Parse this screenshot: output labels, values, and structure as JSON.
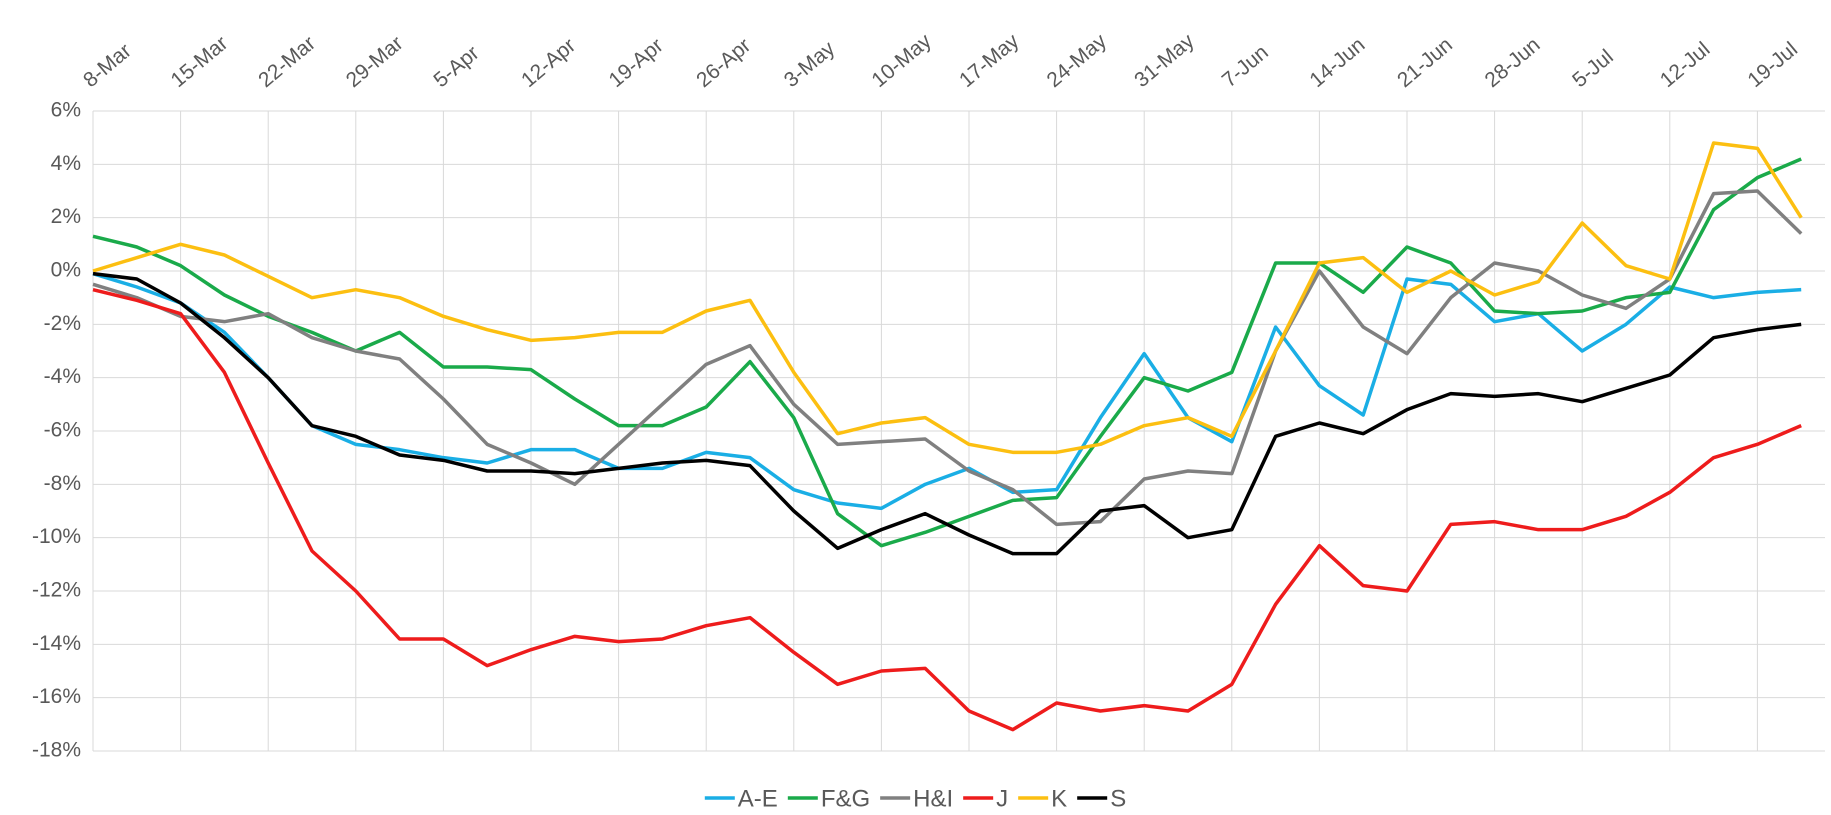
{
  "chart_data": {
    "type": "line",
    "categories": [
      "8-Mar",
      null,
      "15-Mar",
      null,
      "22-Mar",
      null,
      "29-Mar",
      null,
      "5-Apr",
      null,
      "12-Apr",
      null,
      "19-Apr",
      null,
      "26-Apr",
      null,
      "3-May",
      null,
      "10-May",
      null,
      "17-May",
      null,
      "24-May",
      null,
      "31-May",
      null,
      "7-Jun",
      null,
      "14-Jun",
      null,
      "21-Jun",
      null,
      "28-Jun",
      null,
      "5-Jul",
      null,
      "12-Jul",
      null,
      "19-Jul",
      null
    ],
    "series": [
      {
        "name": "A-E",
        "color": "#1aaee5",
        "values": [
          -0.1,
          -0.6,
          -1.2,
          -2.3,
          -4.0,
          -5.8,
          -6.5,
          -6.7,
          -7.0,
          -7.2,
          -6.7,
          -6.7,
          -7.4,
          -7.4,
          -6.8,
          -7.0,
          -8.2,
          -8.7,
          -8.9,
          -8.0,
          -7.4,
          -8.3,
          -8.2,
          -5.5,
          -3.1,
          -5.5,
          -6.4,
          -2.1,
          -4.3,
          -5.4,
          -0.3,
          -0.5,
          -1.9,
          -1.6,
          -3.0,
          -2.0,
          -0.6,
          -1.0,
          -0.8,
          -0.7
        ]
      },
      {
        "name": "F&G",
        "color": "#1aaa4a",
        "values": [
          1.3,
          0.9,
          0.2,
          -0.9,
          -1.7,
          -2.3,
          -3.0,
          -2.3,
          -3.6,
          -3.6,
          -3.7,
          -4.8,
          -5.8,
          -5.8,
          -5.1,
          -3.4,
          -5.5,
          -9.1,
          -10.3,
          -9.8,
          -9.2,
          -8.6,
          -8.5,
          -6.2,
          -4.0,
          -4.5,
          -3.8,
          0.3,
          0.3,
          -0.8,
          0.9,
          0.3,
          -1.5,
          -1.6,
          -1.5,
          -1.0,
          -0.8,
          2.3,
          3.5,
          4.2
        ]
      },
      {
        "name": "H&I",
        "color": "#808080",
        "values": [
          -0.5,
          -1.0,
          -1.7,
          -1.9,
          -1.6,
          -2.5,
          -3.0,
          -3.3,
          -4.8,
          -6.5,
          -7.2,
          -8.0,
          -6.5,
          -5.0,
          -3.5,
          -2.8,
          -5.0,
          -6.5,
          -6.4,
          -6.3,
          -7.5,
          -8.2,
          -9.5,
          -9.4,
          -7.8,
          -7.5,
          -7.6,
          -3.0,
          0.0,
          -2.1,
          -3.1,
          -1.0,
          0.3,
          0.0,
          -0.9,
          -1.4,
          -0.3,
          2.9,
          3.0,
          1.4
        ]
      },
      {
        "name": "J",
        "color": "#ee1c1c",
        "values": [
          -0.7,
          -1.1,
          -1.6,
          -3.8,
          -7.2,
          -10.5,
          -12.0,
          -13.8,
          -13.8,
          -14.8,
          -14.2,
          -13.7,
          -13.9,
          -13.8,
          -13.3,
          -13.0,
          -14.3,
          -15.5,
          -15.0,
          -14.9,
          -16.5,
          -17.2,
          -16.2,
          -16.5,
          -16.3,
          -16.5,
          -15.5,
          -12.5,
          -10.3,
          -11.8,
          -12.0,
          -9.5,
          -9.4,
          -9.7,
          -9.7,
          -9.2,
          -8.3,
          -7.0,
          -6.5,
          -5.8
        ]
      },
      {
        "name": "K",
        "color": "#fcbf11",
        "values": [
          0.0,
          0.5,
          1.0,
          0.6,
          -0.2,
          -1.0,
          -0.7,
          -1.0,
          -1.7,
          -2.2,
          -2.6,
          -2.5,
          -2.3,
          -2.3,
          -1.5,
          -1.1,
          -3.8,
          -6.1,
          -5.7,
          -5.5,
          -6.5,
          -6.8,
          -6.8,
          -6.5,
          -5.8,
          -5.5,
          -6.2,
          -3.0,
          0.3,
          0.5,
          -0.8,
          0.0,
          -0.9,
          -0.4,
          1.8,
          0.2,
          -0.3,
          4.8,
          4.6,
          2.0
        ]
      },
      {
        "name": "S",
        "color": "#000000",
        "values": [
          -0.1,
          -0.3,
          -1.2,
          -2.5,
          -4.0,
          -5.8,
          -6.2,
          -6.9,
          -7.1,
          -7.5,
          -7.5,
          -7.6,
          -7.4,
          -7.2,
          -7.1,
          -7.3,
          -9.0,
          -10.4,
          -9.7,
          -9.1,
          -9.9,
          -10.6,
          -10.6,
          -9.0,
          -8.8,
          -10.0,
          -9.7,
          -6.2,
          -5.7,
          -6.1,
          -5.2,
          -4.6,
          -4.7,
          -4.6,
          -4.9,
          -4.4,
          -3.9,
          -2.5,
          -2.2,
          -2.0
        ]
      }
    ],
    "ylim": [
      -18,
      6
    ],
    "yticks": [
      {
        "value": 6,
        "label": "6%"
      },
      {
        "value": 4,
        "label": "4%"
      },
      {
        "value": 2,
        "label": "2%"
      },
      {
        "value": 0,
        "label": "0%"
      },
      {
        "value": -2,
        "label": "-2%"
      },
      {
        "value": -4,
        "label": "-4%"
      },
      {
        "value": -6,
        "label": "-6%"
      },
      {
        "value": -8,
        "label": "-8%"
      },
      {
        "value": -10,
        "label": "-10%"
      },
      {
        "value": -12,
        "label": "-12%"
      },
      {
        "value": -14,
        "label": "-14%"
      },
      {
        "value": -16,
        "label": "-16%"
      },
      {
        "value": -18,
        "label": "-18%"
      }
    ],
    "grid": true,
    "legend": "bottom"
  }
}
